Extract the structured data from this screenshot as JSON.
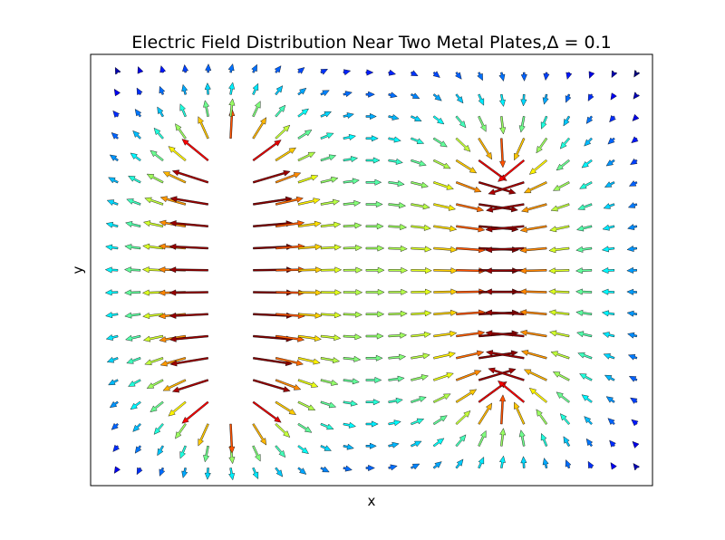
{
  "chart_data": {
    "type": "quiver",
    "title": "Electric Field Distribution Near Two Metal Plates,",
    "title_math": "Δ = 0.1",
    "xlabel": "x",
    "ylabel": "y",
    "ticks_shown": false,
    "grid": false,
    "xlim": [
      0,
      24
    ],
    "ylim": [
      0,
      19
    ],
    "grid_x": [
      1,
      2,
      3,
      4,
      5,
      6,
      7,
      8,
      9,
      10,
      11,
      12,
      13,
      14,
      15,
      16,
      17,
      18,
      19,
      20,
      21,
      22,
      23,
      24
    ],
    "grid_y": [
      1,
      2,
      3,
      4,
      5,
      6,
      7,
      8,
      9,
      10,
      11,
      12,
      13,
      14,
      15,
      16,
      17,
      18,
      19
    ],
    "plates": [
      {
        "x": 6,
        "y_range": [
          4,
          15
        ],
        "charge": 1
      },
      {
        "x": 18,
        "y_range": [
          4,
          15
        ],
        "charge": -1
      }
    ],
    "colormap": [
      "#00007f",
      "#0000ff",
      "#007fff",
      "#00ffff",
      "#7fff7f",
      "#ffff00",
      "#ff7f00",
      "#ff0000",
      "#7f0000"
    ]
  }
}
